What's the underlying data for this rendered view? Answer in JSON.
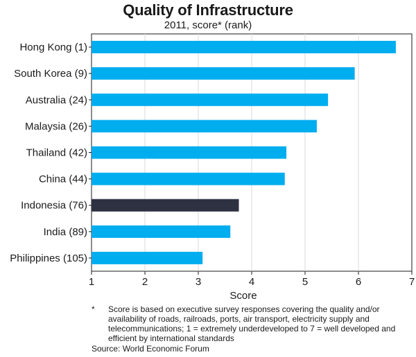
{
  "chart_data": {
    "type": "bar",
    "orientation": "horizontal",
    "title": "Quality of Infrastructure",
    "subtitle": "2011, score* (rank)",
    "xlabel": "Score",
    "ylabel": "",
    "xlim": [
      1,
      7
    ],
    "xticks": [
      1,
      2,
      3,
      4,
      5,
      6,
      7
    ],
    "grid": true,
    "categories": [
      "Hong Kong (1)",
      "South Korea (9)",
      "Australia (24)",
      "Malaysia (26)",
      "Thailand (42)",
      "China (44)",
      "Indonesia (76)",
      "India (89)",
      "Philippines (105)"
    ],
    "values": [
      6.7,
      5.93,
      5.43,
      5.22,
      4.65,
      4.62,
      3.76,
      3.6,
      3.08
    ],
    "highlight": "Indonesia (76)",
    "colors": {
      "bar": "#00adef",
      "highlight": "#2e3142",
      "grid": "#d9d9d9",
      "axis": "#1a1a1a"
    }
  },
  "footnote": {
    "marker": "*",
    "text": "Score is based on executive survey responses covering the quality and/or availability of roads, railroads, ports, air transport, electricity supply and telecommunications; 1 = extremely underdeveloped to 7 = well developed and efficient by international standards"
  },
  "source": "Source: World Economic Forum"
}
